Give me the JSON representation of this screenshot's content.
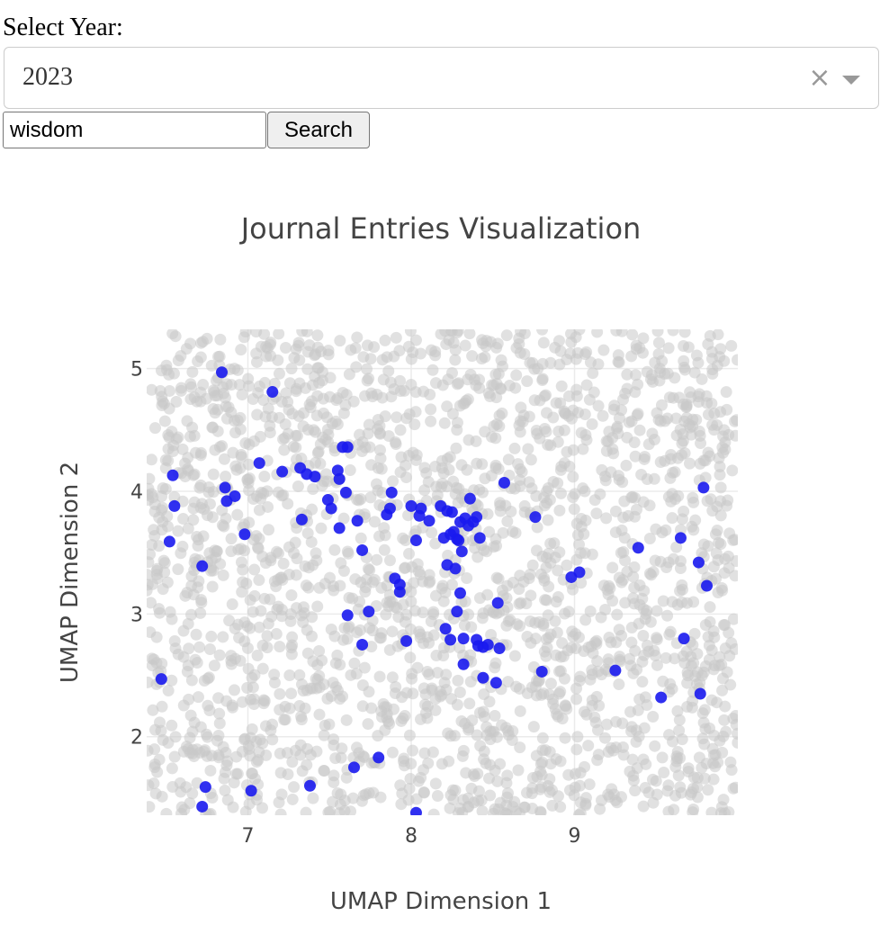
{
  "controls": {
    "year_label": "Select Year:",
    "year_value": "2023",
    "clear_symbol": "×",
    "search_value": "wisdom",
    "search_button": "Search"
  },
  "colors": {
    "background_points": "#c8c8c8",
    "highlight_points": "#1a1aee",
    "grid": "#ebebeb",
    "text": "#444444"
  },
  "icons": {
    "clear": "close-icon",
    "dropdown": "chevron-down-icon"
  },
  "chart_data": {
    "type": "scatter",
    "title": "Journal Entries Visualization",
    "xlabel": "UMAP Dimension 1",
    "ylabel": "UMAP Dimension 2",
    "xlim": [
      6.38,
      10.0
    ],
    "ylim": [
      1.36,
      5.32
    ],
    "x_ticks": [
      7,
      8,
      9
    ],
    "y_ticks": [
      2,
      3,
      4,
      5
    ],
    "grid": true,
    "legend": "none",
    "series": [
      {
        "role": "highlighted",
        "points": [
          [
            6.84,
            4.97
          ],
          [
            7.15,
            4.81
          ],
          [
            6.54,
            4.13
          ],
          [
            6.55,
            3.88
          ],
          [
            6.52,
            3.59
          ],
          [
            6.72,
            3.39
          ],
          [
            6.86,
            4.03
          ],
          [
            6.87,
            3.92
          ],
          [
            6.92,
            3.96
          ],
          [
            6.47,
            2.47
          ],
          [
            6.74,
            1.59
          ],
          [
            6.72,
            1.43
          ],
          [
            7.02,
            1.56
          ],
          [
            7.21,
            4.16
          ],
          [
            7.32,
            4.19
          ],
          [
            7.36,
            4.14
          ],
          [
            7.41,
            4.12
          ],
          [
            7.49,
            3.93
          ],
          [
            7.51,
            3.86
          ],
          [
            7.33,
            3.77
          ],
          [
            7.55,
            4.17
          ],
          [
            7.56,
            4.1
          ],
          [
            7.58,
            4.36
          ],
          [
            7.61,
            4.36
          ],
          [
            7.6,
            3.99
          ],
          [
            7.56,
            3.7
          ],
          [
            7.67,
            3.76
          ],
          [
            7.7,
            3.52
          ],
          [
            7.85,
            3.81
          ],
          [
            7.87,
            3.86
          ],
          [
            7.88,
            3.99
          ],
          [
            7.61,
            2.99
          ],
          [
            7.74,
            3.02
          ],
          [
            7.9,
            3.29
          ],
          [
            7.93,
            3.24
          ],
          [
            7.93,
            3.18
          ],
          [
            7.97,
            2.78
          ],
          [
            8.0,
            3.88
          ],
          [
            8.05,
            3.8
          ],
          [
            8.06,
            3.86
          ],
          [
            8.03,
            3.6
          ],
          [
            8.11,
            3.76
          ],
          [
            8.18,
            3.88
          ],
          [
            8.22,
            3.84
          ],
          [
            8.25,
            3.83
          ],
          [
            8.2,
            3.62
          ],
          [
            8.24,
            3.65
          ],
          [
            8.26,
            3.67
          ],
          [
            8.29,
            3.6
          ],
          [
            8.3,
            3.75
          ],
          [
            8.28,
            3.61
          ],
          [
            8.33,
            3.78
          ],
          [
            8.35,
            3.72
          ],
          [
            8.38,
            3.75
          ],
          [
            8.36,
            3.94
          ],
          [
            8.4,
            3.79
          ],
          [
            8.42,
            3.62
          ],
          [
            8.31,
            3.51
          ],
          [
            8.22,
            3.4
          ],
          [
            8.27,
            3.37
          ],
          [
            8.3,
            3.17
          ],
          [
            8.28,
            3.02
          ],
          [
            8.21,
            2.88
          ],
          [
            8.24,
            2.79
          ],
          [
            8.32,
            2.8
          ],
          [
            8.4,
            2.79
          ],
          [
            8.41,
            2.74
          ],
          [
            8.44,
            2.73
          ],
          [
            8.47,
            2.75
          ],
          [
            8.54,
            2.72
          ],
          [
            8.32,
            2.59
          ],
          [
            8.44,
            2.48
          ],
          [
            8.52,
            2.44
          ],
          [
            8.57,
            4.07
          ],
          [
            8.76,
            3.79
          ],
          [
            8.8,
            2.53
          ],
          [
            8.53,
            3.09
          ],
          [
            8.98,
            3.3
          ],
          [
            9.03,
            3.34
          ],
          [
            9.25,
            2.54
          ],
          [
            9.39,
            3.54
          ],
          [
            9.65,
            3.62
          ],
          [
            9.67,
            2.8
          ],
          [
            9.76,
            3.42
          ],
          [
            9.79,
            4.03
          ],
          [
            9.81,
            3.23
          ],
          [
            9.53,
            2.32
          ],
          [
            9.77,
            2.35
          ],
          [
            8.03,
            1.38
          ],
          [
            7.38,
            1.6
          ],
          [
            7.65,
            1.75
          ],
          [
            7.8,
            1.83
          ],
          [
            6.98,
            3.65
          ],
          [
            7.07,
            4.23
          ],
          [
            7.7,
            2.75
          ]
        ]
      }
    ]
  }
}
